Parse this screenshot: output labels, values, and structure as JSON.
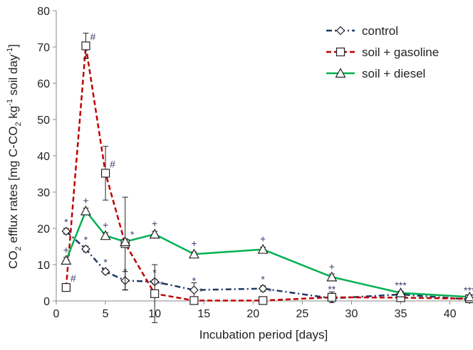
{
  "chart_data": {
    "type": "line",
    "x_label": "Incubation period [days]",
    "y_label_parts": [
      "CO",
      "2",
      " efflux rates [mg C-CO",
      "2",
      " kg",
      "-1",
      " soil day",
      "-1",
      "]"
    ],
    "xlim": [
      0,
      42.2
    ],
    "xticks": [
      0,
      5,
      10,
      15,
      20,
      25,
      30,
      35,
      40
    ],
    "ylim": [
      0,
      80
    ],
    "yticks": [
      0,
      10,
      20,
      30,
      40,
      50,
      60,
      70,
      80
    ],
    "x": [
      1,
      3,
      5,
      7,
      10,
      14,
      21,
      28,
      35,
      42
    ],
    "legend": "upper right",
    "annotation_color": "#3f3d6b",
    "series": [
      {
        "name": "control",
        "color": "#1f3864",
        "line_style": "dash-dot",
        "marker": "diamond",
        "values": [
          19.2,
          14.3,
          8.1,
          5.6,
          5.3,
          3.0,
          3.4,
          0.7,
          1.8,
          0.4
        ],
        "errors": [
          0.8,
          0.8,
          0.6,
          2.5,
          0.6,
          2.0,
          0.8,
          0.5,
          0.8,
          0.5
        ],
        "marker_labels": [
          "*",
          "*",
          "*",
          "*",
          "*",
          "*",
          "*",
          "**",
          "***",
          "***"
        ]
      },
      {
        "name": "soil + gasoline",
        "color": "#c00000",
        "line_style": "dashed",
        "marker": "square",
        "values": [
          3.7,
          70.3,
          35.2,
          15.8,
          2.0,
          0.1,
          0.1,
          1.0,
          0.9,
          0.6
        ],
        "errors": [
          0.8,
          3.5,
          7.4,
          12.8,
          8.0,
          0.3,
          0.3,
          1.5,
          1.0,
          1.0
        ],
        "marker_labels": [
          "#",
          "#",
          "#",
          "*",
          "*",
          "*",
          "*",
          null,
          null,
          null
        ]
      },
      {
        "name": "soil + diesel",
        "color": "#00b050",
        "line_style": "solid",
        "marker": "triangle",
        "values": [
          11.2,
          24.8,
          18.0,
          16.3,
          18.4,
          12.9,
          14.2,
          6.6,
          2.2,
          1.1
        ],
        "errors": [
          0.8,
          0.8,
          0.8,
          0.8,
          0.8,
          0.6,
          0.6,
          0.8,
          0.5,
          0.5
        ],
        "marker_labels": [
          "+",
          "+",
          "+",
          null,
          "+",
          "+",
          "+",
          "+",
          null,
          null
        ]
      }
    ]
  }
}
